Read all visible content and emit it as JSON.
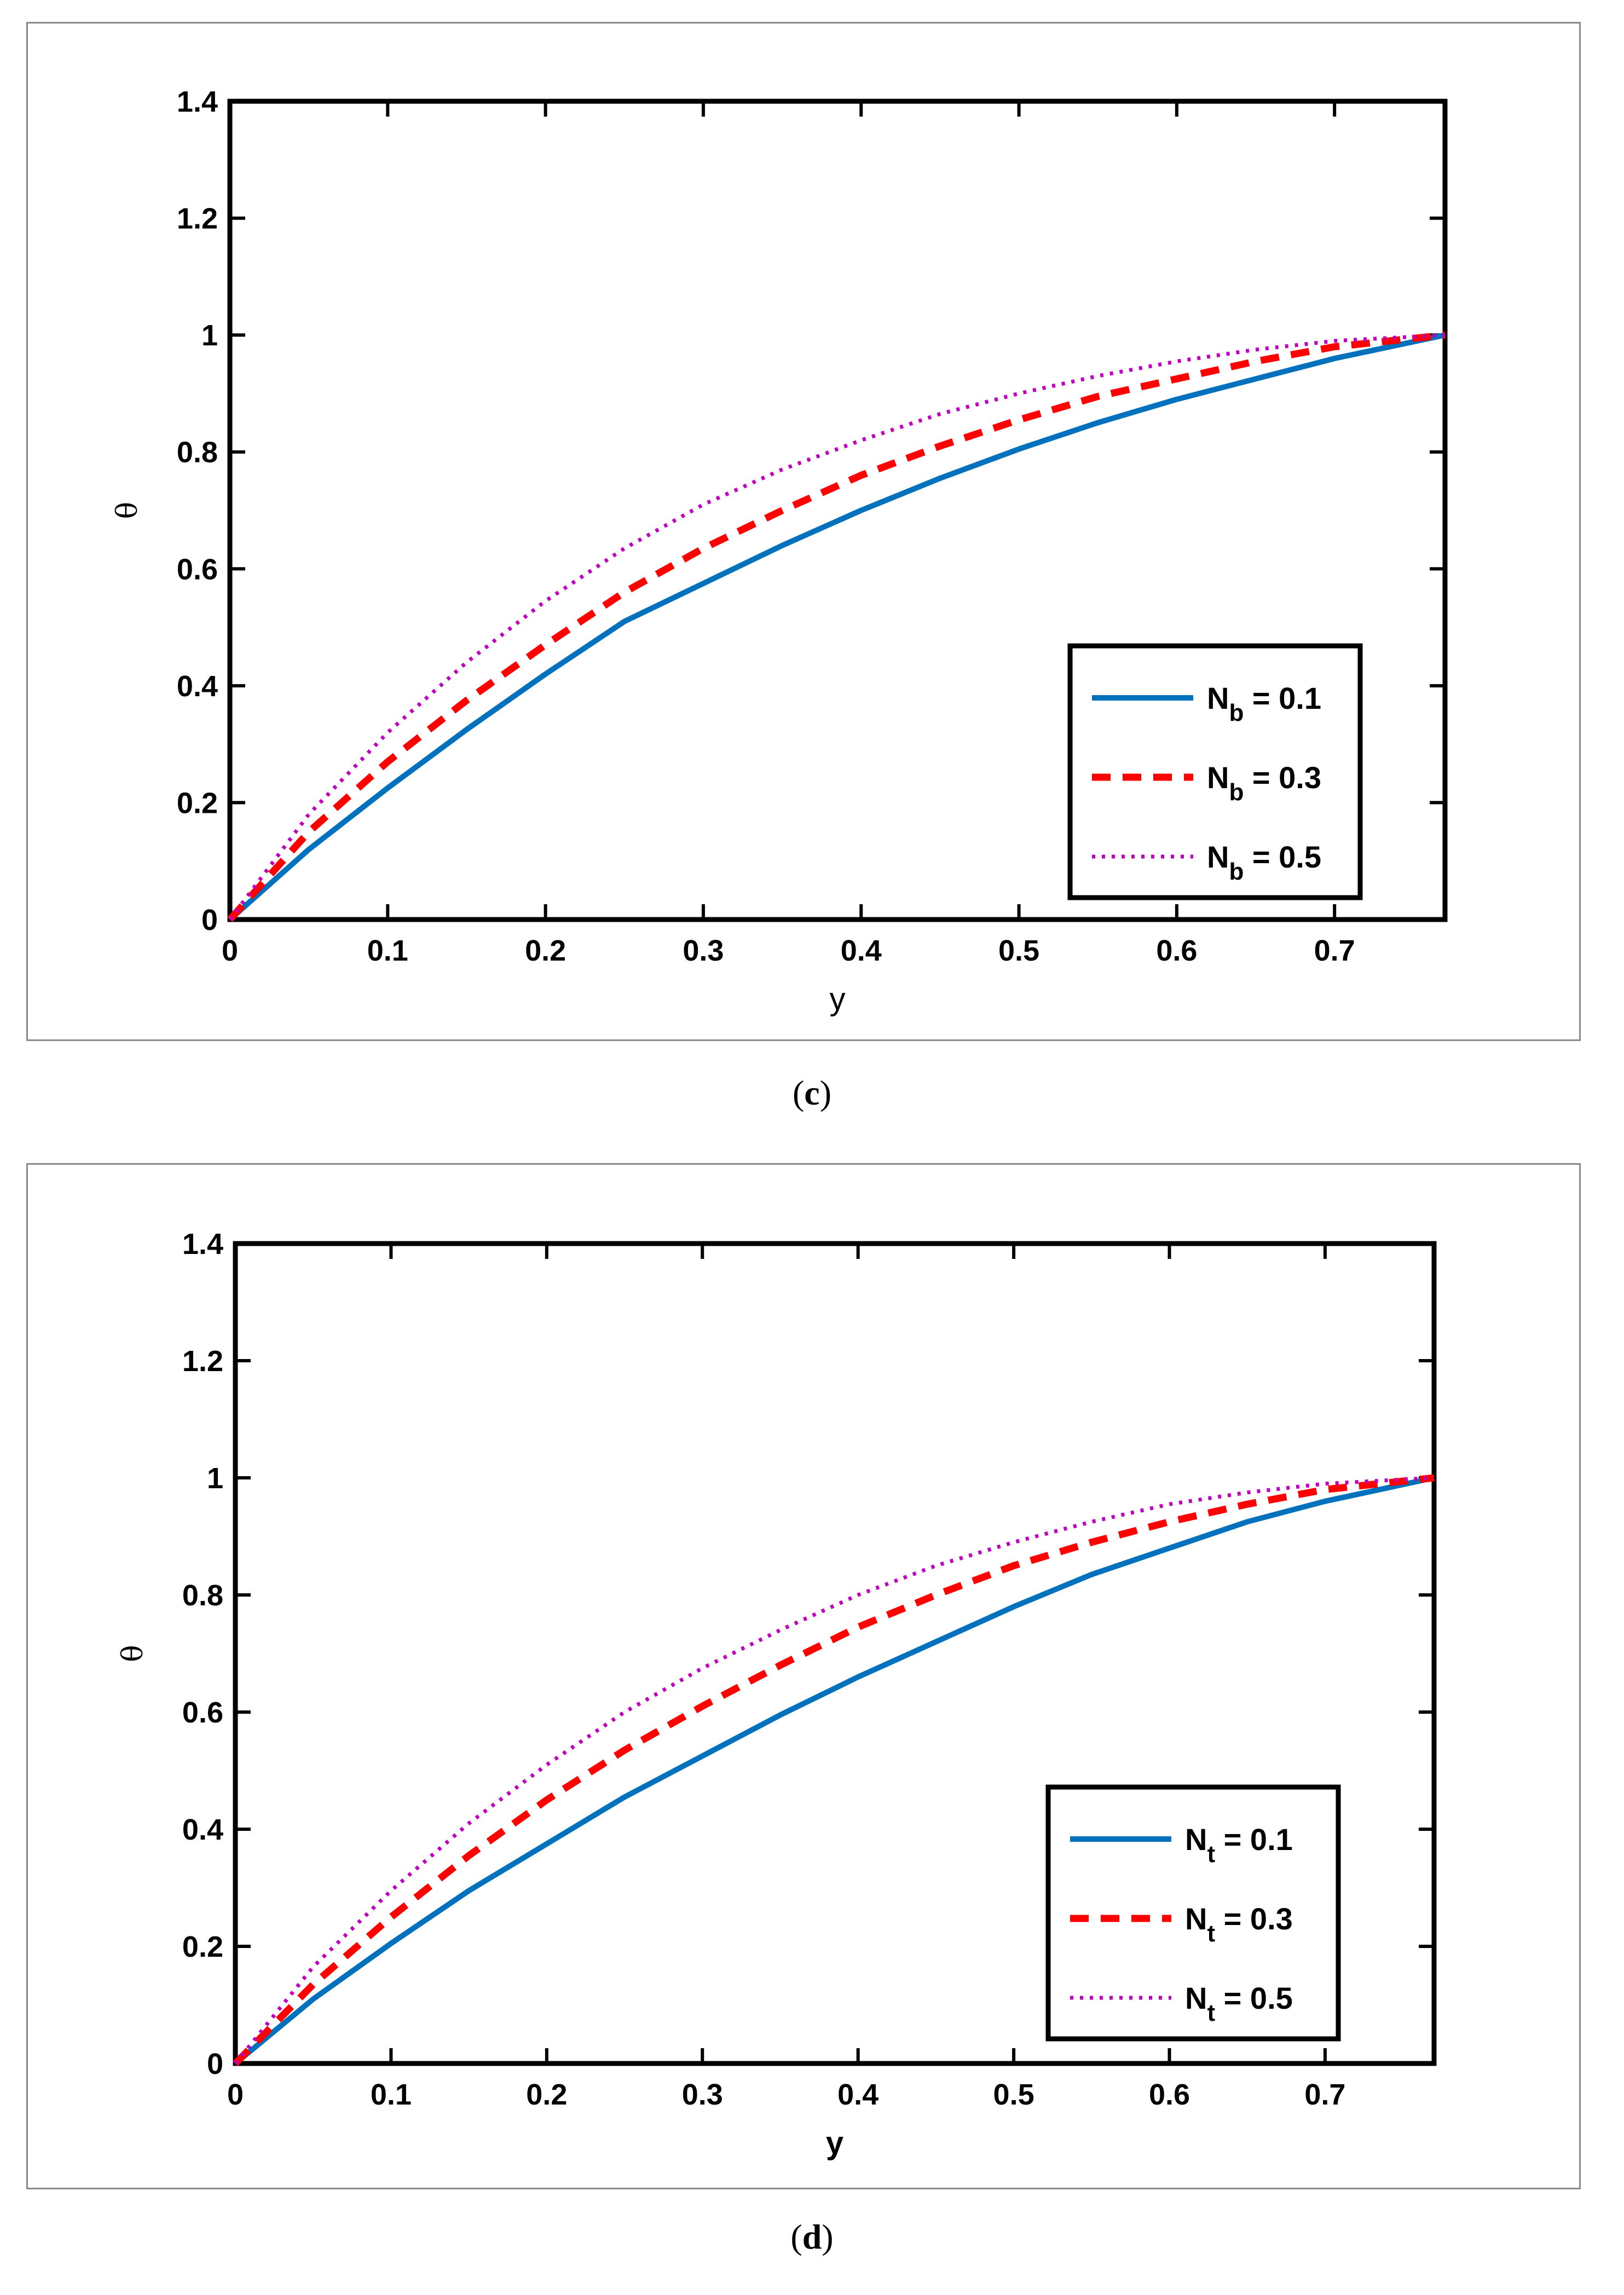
{
  "chart_data": [
    {
      "type": "line",
      "panel_label": "c",
      "xlabel": "y",
      "ylabel": "θ",
      "xlim": [
        0,
        0.77
      ],
      "ylim": [
        0,
        1.4
      ],
      "xticks": [
        "0",
        "0.1",
        "0.2",
        "0.3",
        "0.4",
        "0.5",
        "0.6",
        "0.7"
      ],
      "yticks": [
        "0",
        "0.2",
        "0.4",
        "0.6",
        "0.8",
        "1",
        "1.2",
        "1.4"
      ],
      "legend_position": "bottom-right",
      "x": [
        0,
        0.05,
        0.1,
        0.15,
        0.2,
        0.25,
        0.3,
        0.35,
        0.4,
        0.45,
        0.5,
        0.55,
        0.6,
        0.65,
        0.7,
        0.77
      ],
      "series": [
        {
          "name": "N_b = 0.1",
          "symbol": "N",
          "sub": "b",
          "value_text": " = 0.1",
          "color": "#0072BD",
          "style": "solid",
          "values": [
            0,
            0.12,
            0.225,
            0.325,
            0.42,
            0.51,
            0.575,
            0.64,
            0.7,
            0.755,
            0.805,
            0.85,
            0.89,
            0.925,
            0.96,
            1.0
          ]
        },
        {
          "name": "N_b = 0.3",
          "symbol": "N",
          "sub": "b",
          "value_text": " = 0.3",
          "color": "#FF0000",
          "style": "dashed",
          "values": [
            0,
            0.15,
            0.27,
            0.375,
            0.47,
            0.56,
            0.635,
            0.7,
            0.76,
            0.81,
            0.855,
            0.895,
            0.925,
            0.955,
            0.98,
            1.0
          ]
        },
        {
          "name": "N_b = 0.5",
          "symbol": "N",
          "sub": "b",
          "value_text": " = 0.5",
          "color": "#BF00BF",
          "style": "dotted",
          "values": [
            0,
            0.18,
            0.32,
            0.44,
            0.545,
            0.635,
            0.71,
            0.77,
            0.82,
            0.865,
            0.9,
            0.93,
            0.955,
            0.975,
            0.99,
            1.0
          ]
        }
      ]
    },
    {
      "type": "line",
      "panel_label": "d",
      "xlabel": "y",
      "ylabel": "θ",
      "xlim": [
        0,
        0.77
      ],
      "ylim": [
        0,
        1.4
      ],
      "xticks": [
        "0",
        "0.1",
        "0.2",
        "0.3",
        "0.4",
        "0.5",
        "0.6",
        "0.7"
      ],
      "yticks": [
        "0",
        "0.2",
        "0.4",
        "0.6",
        "0.8",
        "1",
        "1.2",
        "1.4"
      ],
      "legend_position": "bottom-right",
      "x": [
        0,
        0.05,
        0.1,
        0.15,
        0.2,
        0.25,
        0.3,
        0.35,
        0.4,
        0.45,
        0.5,
        0.55,
        0.6,
        0.65,
        0.7,
        0.77
      ],
      "series": [
        {
          "name": "N_t = 0.1",
          "symbol": "N",
          "sub": "t",
          "value_text": " = 0.1",
          "color": "#0072BD",
          "style": "solid",
          "values": [
            0,
            0.11,
            0.205,
            0.295,
            0.375,
            0.455,
            0.525,
            0.595,
            0.66,
            0.72,
            0.78,
            0.835,
            0.88,
            0.925,
            0.96,
            1.0
          ]
        },
        {
          "name": "N_t = 0.3",
          "symbol": "N",
          "sub": "t",
          "value_text": " = 0.3",
          "color": "#FF0000",
          "style": "dashed",
          "values": [
            0,
            0.135,
            0.25,
            0.355,
            0.45,
            0.535,
            0.61,
            0.68,
            0.745,
            0.8,
            0.85,
            0.89,
            0.925,
            0.955,
            0.98,
            1.0
          ]
        },
        {
          "name": "N_t = 0.5",
          "symbol": "N",
          "sub": "t",
          "value_text": " = 0.5",
          "color": "#BF00BF",
          "style": "dotted",
          "values": [
            0,
            0.165,
            0.295,
            0.41,
            0.51,
            0.6,
            0.675,
            0.74,
            0.8,
            0.85,
            0.89,
            0.925,
            0.955,
            0.975,
            0.99,
            1.0
          ]
        }
      ]
    }
  ]
}
